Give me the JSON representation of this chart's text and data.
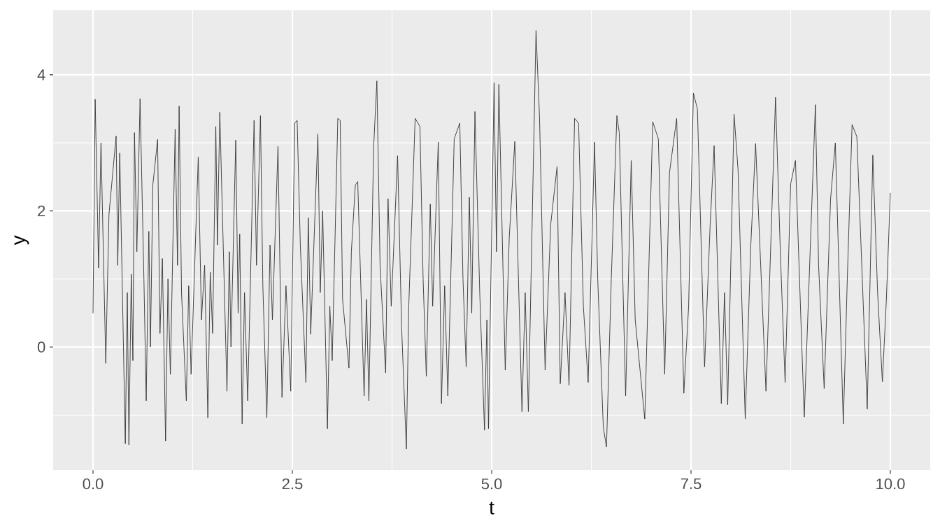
{
  "chart_data": {
    "type": "line",
    "xlabel": "t",
    "ylabel": "y",
    "x": [
      0.0,
      0.027,
      0.07,
      0.1,
      0.16,
      0.2,
      0.29,
      0.31,
      0.335,
      0.405,
      0.43,
      0.45,
      0.48,
      0.5,
      0.52,
      0.55,
      0.59,
      0.64,
      0.667,
      0.7,
      0.72,
      0.75,
      0.81,
      0.84,
      0.87,
      0.91,
      0.94,
      0.97,
      1.03,
      1.06,
      1.08,
      1.11,
      1.17,
      1.2,
      1.23,
      1.32,
      1.36,
      1.4,
      1.44,
      1.47,
      1.5,
      1.54,
      1.56,
      1.59,
      1.68,
      1.71,
      1.73,
      1.79,
      1.82,
      1.84,
      1.87,
      1.9,
      1.94,
      2.02,
      2.05,
      2.1,
      2.13,
      2.18,
      2.22,
      2.25,
      2.32,
      2.37,
      2.42,
      2.48,
      2.53,
      2.56,
      2.6,
      2.67,
      2.7,
      2.73,
      2.82,
      2.85,
      2.88,
      2.94,
      2.97,
      3.0,
      3.07,
      3.1,
      3.13,
      3.21,
      3.24,
      3.29,
      3.32,
      3.4,
      3.43,
      3.46,
      3.52,
      3.56,
      3.6,
      3.67,
      3.7,
      3.74,
      3.82,
      3.87,
      3.93,
      3.96,
      4.04,
      4.1,
      4.14,
      4.18,
      4.23,
      4.26,
      4.33,
      4.37,
      4.41,
      4.45,
      4.53,
      4.6,
      4.64,
      4.68,
      4.72,
      4.75,
      4.79,
      4.85,
      4.91,
      4.94,
      4.96,
      5.03,
      5.06,
      5.09,
      5.17,
      5.22,
      5.29,
      5.38,
      5.42,
      5.46,
      5.556,
      5.6,
      5.67,
      5.74,
      5.82,
      5.86,
      5.92,
      5.97,
      6.04,
      6.09,
      6.15,
      6.21,
      6.29,
      6.33,
      6.4,
      6.44,
      6.5,
      6.57,
      6.6,
      6.68,
      6.75,
      6.8,
      6.92,
      7.02,
      7.09,
      7.17,
      7.23,
      7.32,
      7.41,
      7.47,
      7.53,
      7.58,
      7.67,
      7.74,
      7.79,
      7.88,
      7.92,
      7.96,
      8.04,
      8.09,
      8.18,
      8.25,
      8.31,
      8.44,
      8.5,
      8.56,
      8.62,
      8.68,
      8.75,
      8.81,
      8.92,
      9.0,
      9.06,
      9.1,
      9.17,
      9.25,
      9.31,
      9.41,
      9.46,
      9.52,
      9.58,
      9.71,
      9.78,
      9.84,
      9.9,
      9.95,
      10.0
    ],
    "series": [
      {
        "color": "#333333",
        "values": [
          0.5,
          3.64,
          1.16,
          3.0,
          -0.24,
          1.95,
          3.1,
          1.2,
          2.85,
          -1.42,
          0.8,
          -1.44,
          1.07,
          -0.2,
          3.15,
          1.4,
          3.65,
          0.9,
          -0.79,
          1.7,
          0.0,
          2.38,
          3.05,
          0.2,
          1.3,
          -1.38,
          1.0,
          -0.4,
          3.2,
          1.2,
          3.54,
          0.8,
          -0.79,
          0.9,
          -0.4,
          2.79,
          0.4,
          1.2,
          -1.04,
          1.1,
          0.2,
          3.24,
          1.5,
          3.45,
          -0.65,
          1.4,
          0.0,
          3.04,
          0.5,
          1.66,
          -1.13,
          0.8,
          -0.79,
          3.33,
          1.2,
          3.4,
          0.9,
          -1.04,
          1.5,
          0.4,
          2.95,
          -0.74,
          0.9,
          -0.65,
          3.29,
          3.33,
          1.5,
          -0.52,
          1.9,
          0.19,
          3.13,
          0.8,
          2.0,
          -1.2,
          0.6,
          -0.2,
          3.36,
          3.33,
          0.7,
          -0.31,
          1.4,
          2.38,
          2.43,
          -0.72,
          0.7,
          -0.79,
          2.95,
          3.91,
          1.2,
          -0.38,
          2.18,
          0.6,
          2.81,
          0.3,
          -1.5,
          0.6,
          3.36,
          3.24,
          1.0,
          -0.43,
          2.1,
          0.6,
          3.01,
          -0.83,
          0.9,
          -0.72,
          3.06,
          3.29,
          1.0,
          -0.29,
          2.2,
          0.5,
          3.46,
          0.8,
          -1.22,
          0.4,
          -1.2,
          3.88,
          1.4,
          3.86,
          -0.34,
          1.6,
          3.02,
          -0.95,
          0.8,
          -0.95,
          4.65,
          3.38,
          -0.34,
          1.8,
          2.65,
          -0.54,
          0.8,
          -0.56,
          3.36,
          3.29,
          0.6,
          -0.52,
          3.01,
          1.0,
          -1.18,
          -1.47,
          1.0,
          3.4,
          3.15,
          -0.72,
          2.74,
          0.4,
          -1.06,
          3.31,
          3.06,
          -0.4,
          2.56,
          3.36,
          -0.68,
          0.6,
          3.73,
          3.5,
          -0.29,
          1.8,
          2.96,
          -0.83,
          0.8,
          -0.85,
          3.42,
          2.6,
          -1.06,
          1.5,
          2.99,
          -0.65,
          1.5,
          3.67,
          1.4,
          -0.52,
          2.4,
          2.74,
          -1.03,
          1.6,
          3.56,
          1.2,
          -0.61,
          2.17,
          3.0,
          -1.13,
          1.0,
          3.27,
          3.09,
          -0.91,
          2.82,
          0.8,
          -0.51,
          0.7,
          2.26
        ]
      }
    ],
    "xlim": [
      -0.5,
      10.5
    ],
    "ylim": [
      -1.81,
      4.95
    ],
    "xticks": [
      {
        "value": 0,
        "label": "0.0"
      },
      2.5,
      {
        "value": 5,
        "label": "5.0"
      },
      7.5,
      {
        "value": 10,
        "label": "10.0"
      }
    ],
    "yticks": [
      0,
      2,
      4
    ],
    "grid": true
  }
}
